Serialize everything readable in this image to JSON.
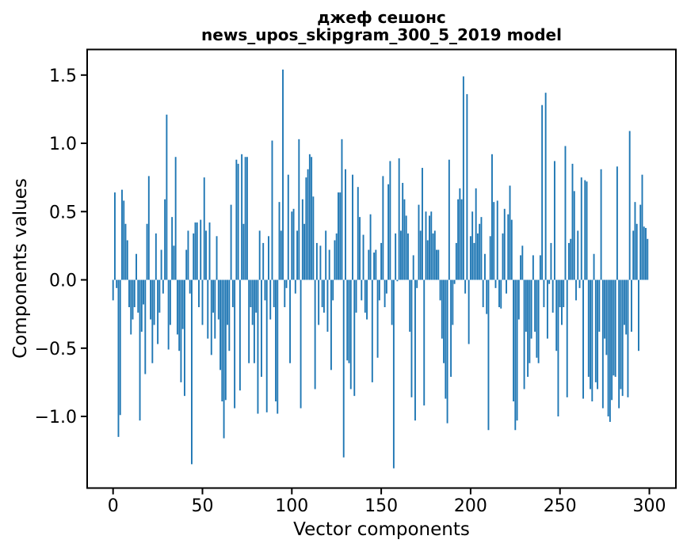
{
  "figure": {
    "title_line1": "джеф сешонс",
    "title_line2": "news_upos_skipgram_300_5_2019 model"
  },
  "chart_data": {
    "type": "bar",
    "title": "джеф сешонс\nnews_upos_skipgram_300_5_2019 model",
    "xlabel": "Vector components",
    "ylabel": "Components values",
    "bar_color": "#1f77b4",
    "axis_color": "#000000",
    "grid": false,
    "legend": "none",
    "n_components": 300,
    "xlim": [
      -15,
      314
    ],
    "ylim": [
      -1.53,
      1.69
    ],
    "x_ticks": [
      0,
      50,
      100,
      150,
      200,
      250,
      300
    ],
    "x_tick_labels": [
      "0",
      "50",
      "100",
      "150",
      "200",
      "250",
      "300"
    ],
    "y_ticks": [
      -1.0,
      -0.5,
      0.0,
      0.5,
      1.0,
      1.5
    ],
    "y_tick_labels": [
      "−1.0",
      "−0.5",
      "0.0",
      "0.5",
      "1.0",
      "1.5"
    ],
    "values": [
      -0.15,
      0.64,
      -0.06,
      -1.15,
      -0.99,
      0.66,
      0.58,
      0.41,
      0.29,
      -0.2,
      -0.4,
      -0.29,
      -0.2,
      0.19,
      -0.24,
      -1.03,
      -0.38,
      -0.18,
      -0.69,
      0.41,
      0.76,
      -0.29,
      -0.61,
      -0.33,
      0.34,
      -0.47,
      -0.24,
      0.22,
      -0.1,
      0.59,
      1.21,
      -0.51,
      -0.33,
      0.46,
      0.25,
      0.9,
      -0.4,
      -0.52,
      -0.75,
      -0.36,
      -0.85,
      0.22,
      0.36,
      -0.1,
      -1.35,
      0.34,
      0.42,
      0.42,
      -0.2,
      0.44,
      -0.33,
      0.75,
      0.36,
      -0.43,
      0.42,
      -0.55,
      -0.24,
      -0.43,
      0.32,
      -0.29,
      -0.66,
      -0.89,
      -1.16,
      -0.88,
      -0.33,
      -0.52,
      0.55,
      -0.2,
      -0.94,
      0.88,
      0.85,
      -0.81,
      0.92,
      0.41,
      0.9,
      0.9,
      -0.61,
      -0.2,
      -0.33,
      -0.61,
      -0.24,
      -0.98,
      0.36,
      -0.71,
      0.27,
      -0.15,
      -0.97,
      0.32,
      -0.29,
      1.02,
      -0.2,
      -0.89,
      -0.98,
      0.57,
      0.36,
      1.54,
      -0.2,
      -0.06,
      0.77,
      -0.61,
      0.5,
      0.52,
      -0.1,
      0.36,
      1.03,
      -0.94,
      0.59,
      0.41,
      0.75,
      0.81,
      0.92,
      0.9,
      0.61,
      -0.8,
      0.27,
      -0.33,
      0.25,
      -0.2,
      -0.24,
      0.36,
      -0.38,
      0.22,
      -0.66,
      -0.15,
      0.29,
      0.34,
      0.64,
      0.64,
      1.03,
      -1.3,
      0.81,
      -0.59,
      -0.61,
      -0.8,
      0.77,
      -0.85,
      -0.24,
      0.68,
      0.46,
      -0.15,
      0.33,
      -0.24,
      -0.29,
      0.22,
      0.48,
      -0.75,
      0.2,
      0.22,
      -0.57,
      -0.15,
      0.27,
      0.76,
      -0.2,
      -0.1,
      0.7,
      0.87,
      -0.33,
      -1.38,
      0.34,
      -0.01,
      0.89,
      0.36,
      0.71,
      0.59,
      0.47,
      0.34,
      -0.38,
      -0.86,
      0.18,
      -1.03,
      -0.06,
      0.55,
      0.36,
      0.82,
      -0.92,
      0.5,
      0.29,
      0.47,
      0.5,
      0.34,
      0.36,
      0.22,
      0.22,
      -0.15,
      -0.43,
      -0.61,
      -0.87,
      -1.05,
      0.88,
      -0.71,
      -0.33,
      -0.03,
      0.27,
      0.59,
      0.67,
      0.59,
      1.49,
      -0.1,
      1.36,
      -0.47,
      0.32,
      0.5,
      0.27,
      0.67,
      0.34,
      0.41,
      0.46,
      -0.2,
      0.19,
      -0.25,
      -1.1,
      0.32,
      0.92,
      0.57,
      -0.06,
      0.58,
      -0.2,
      -0.21,
      0.34,
      0.52,
      -0.1,
      0.48,
      0.69,
      0.44,
      -0.89,
      -1.1,
      -1.03,
      -0.29,
      0.18,
      0.25,
      -0.8,
      -0.38,
      -0.71,
      -0.61,
      -0.43,
      0.18,
      -0.38,
      -0.57,
      -0.61,
      0.18,
      1.28,
      -0.2,
      1.37,
      -0.43,
      -0.03,
      0.27,
      -0.24,
      0.87,
      -0.52,
      -1.0,
      -0.2,
      -0.33,
      -0.2,
      0.98,
      -0.86,
      0.27,
      0.3,
      0.85,
      0.65,
      -0.15,
      0.36,
      -0.06,
      0.75,
      -0.87,
      0.73,
      0.72,
      -0.71,
      -0.8,
      -0.89,
      0.19,
      -0.75,
      -0.8,
      -0.38,
      0.81,
      -0.94,
      -0.43,
      -0.55,
      -1.0,
      -1.04,
      -0.88,
      -0.7,
      -0.71,
      0.83,
      -0.94,
      -0.8,
      -0.85,
      -0.33,
      -0.4,
      -0.86,
      1.09,
      -0.38,
      0.36,
      0.57,
      0.41,
      -0.52,
      0.55,
      0.77,
      0.39,
      0.38,
      0.3
    ]
  }
}
